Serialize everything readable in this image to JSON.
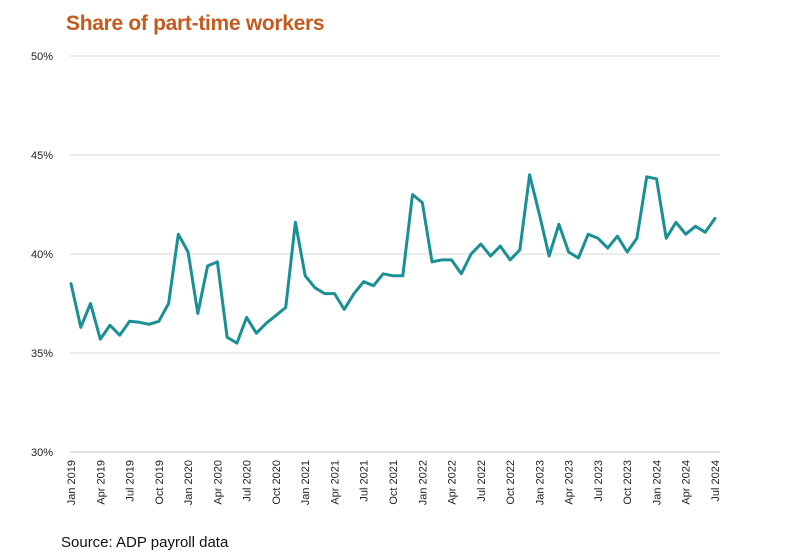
{
  "source": "Source: ADP payroll data",
  "chart_data": {
    "type": "line",
    "title": "Share of part-time workers",
    "xlabel": "",
    "ylabel": "",
    "ylim": [
      30,
      50
    ],
    "y_ticks": [
      "30%",
      "35%",
      "40%",
      "45%",
      "50%"
    ],
    "x_ticks": [
      "Jan 2019",
      "Apr 2019",
      "Jul 2019",
      "Oct 2019",
      "Jan 2020",
      "Apr 2020",
      "Jul 2020",
      "Oct 2020",
      "Jan 2021",
      "Apr 2021",
      "Jul 2021",
      "Oct 2021",
      "Jan 2022",
      "Apr 2022",
      "Jul 2022",
      "Oct 2022",
      "Jan 2023",
      "Apr 2023",
      "Jul 2023",
      "Oct 2023",
      "Jan 2024",
      "Apr 2024",
      "Jul 2024"
    ],
    "grid": true,
    "line_color": "#1A9095",
    "series": [
      {
        "values": [
          38.5,
          36.3,
          37.5,
          35.7,
          36.4,
          35.9,
          36.6,
          36.55,
          36.45,
          36.6,
          37.5,
          41.0,
          40.1,
          37.0,
          39.4,
          39.6,
          35.8,
          35.5,
          36.8,
          36.0,
          36.5,
          36.9,
          37.3,
          41.6,
          38.9,
          38.3,
          38.0,
          38.0,
          37.2,
          38.0,
          38.6,
          38.4,
          39.0,
          38.9,
          38.9,
          43.0,
          42.6,
          39.6,
          39.7,
          39.7,
          39.0,
          40.0,
          40.5,
          39.9,
          40.4,
          39.7,
          40.2,
          44.0,
          42.0,
          39.9,
          41.5,
          40.1,
          39.8,
          41.0,
          40.8,
          40.3,
          40.9,
          40.1,
          40.8,
          43.9,
          43.8,
          40.8,
          41.6,
          41.0,
          41.4,
          41.1,
          41.8
        ]
      }
    ]
  }
}
